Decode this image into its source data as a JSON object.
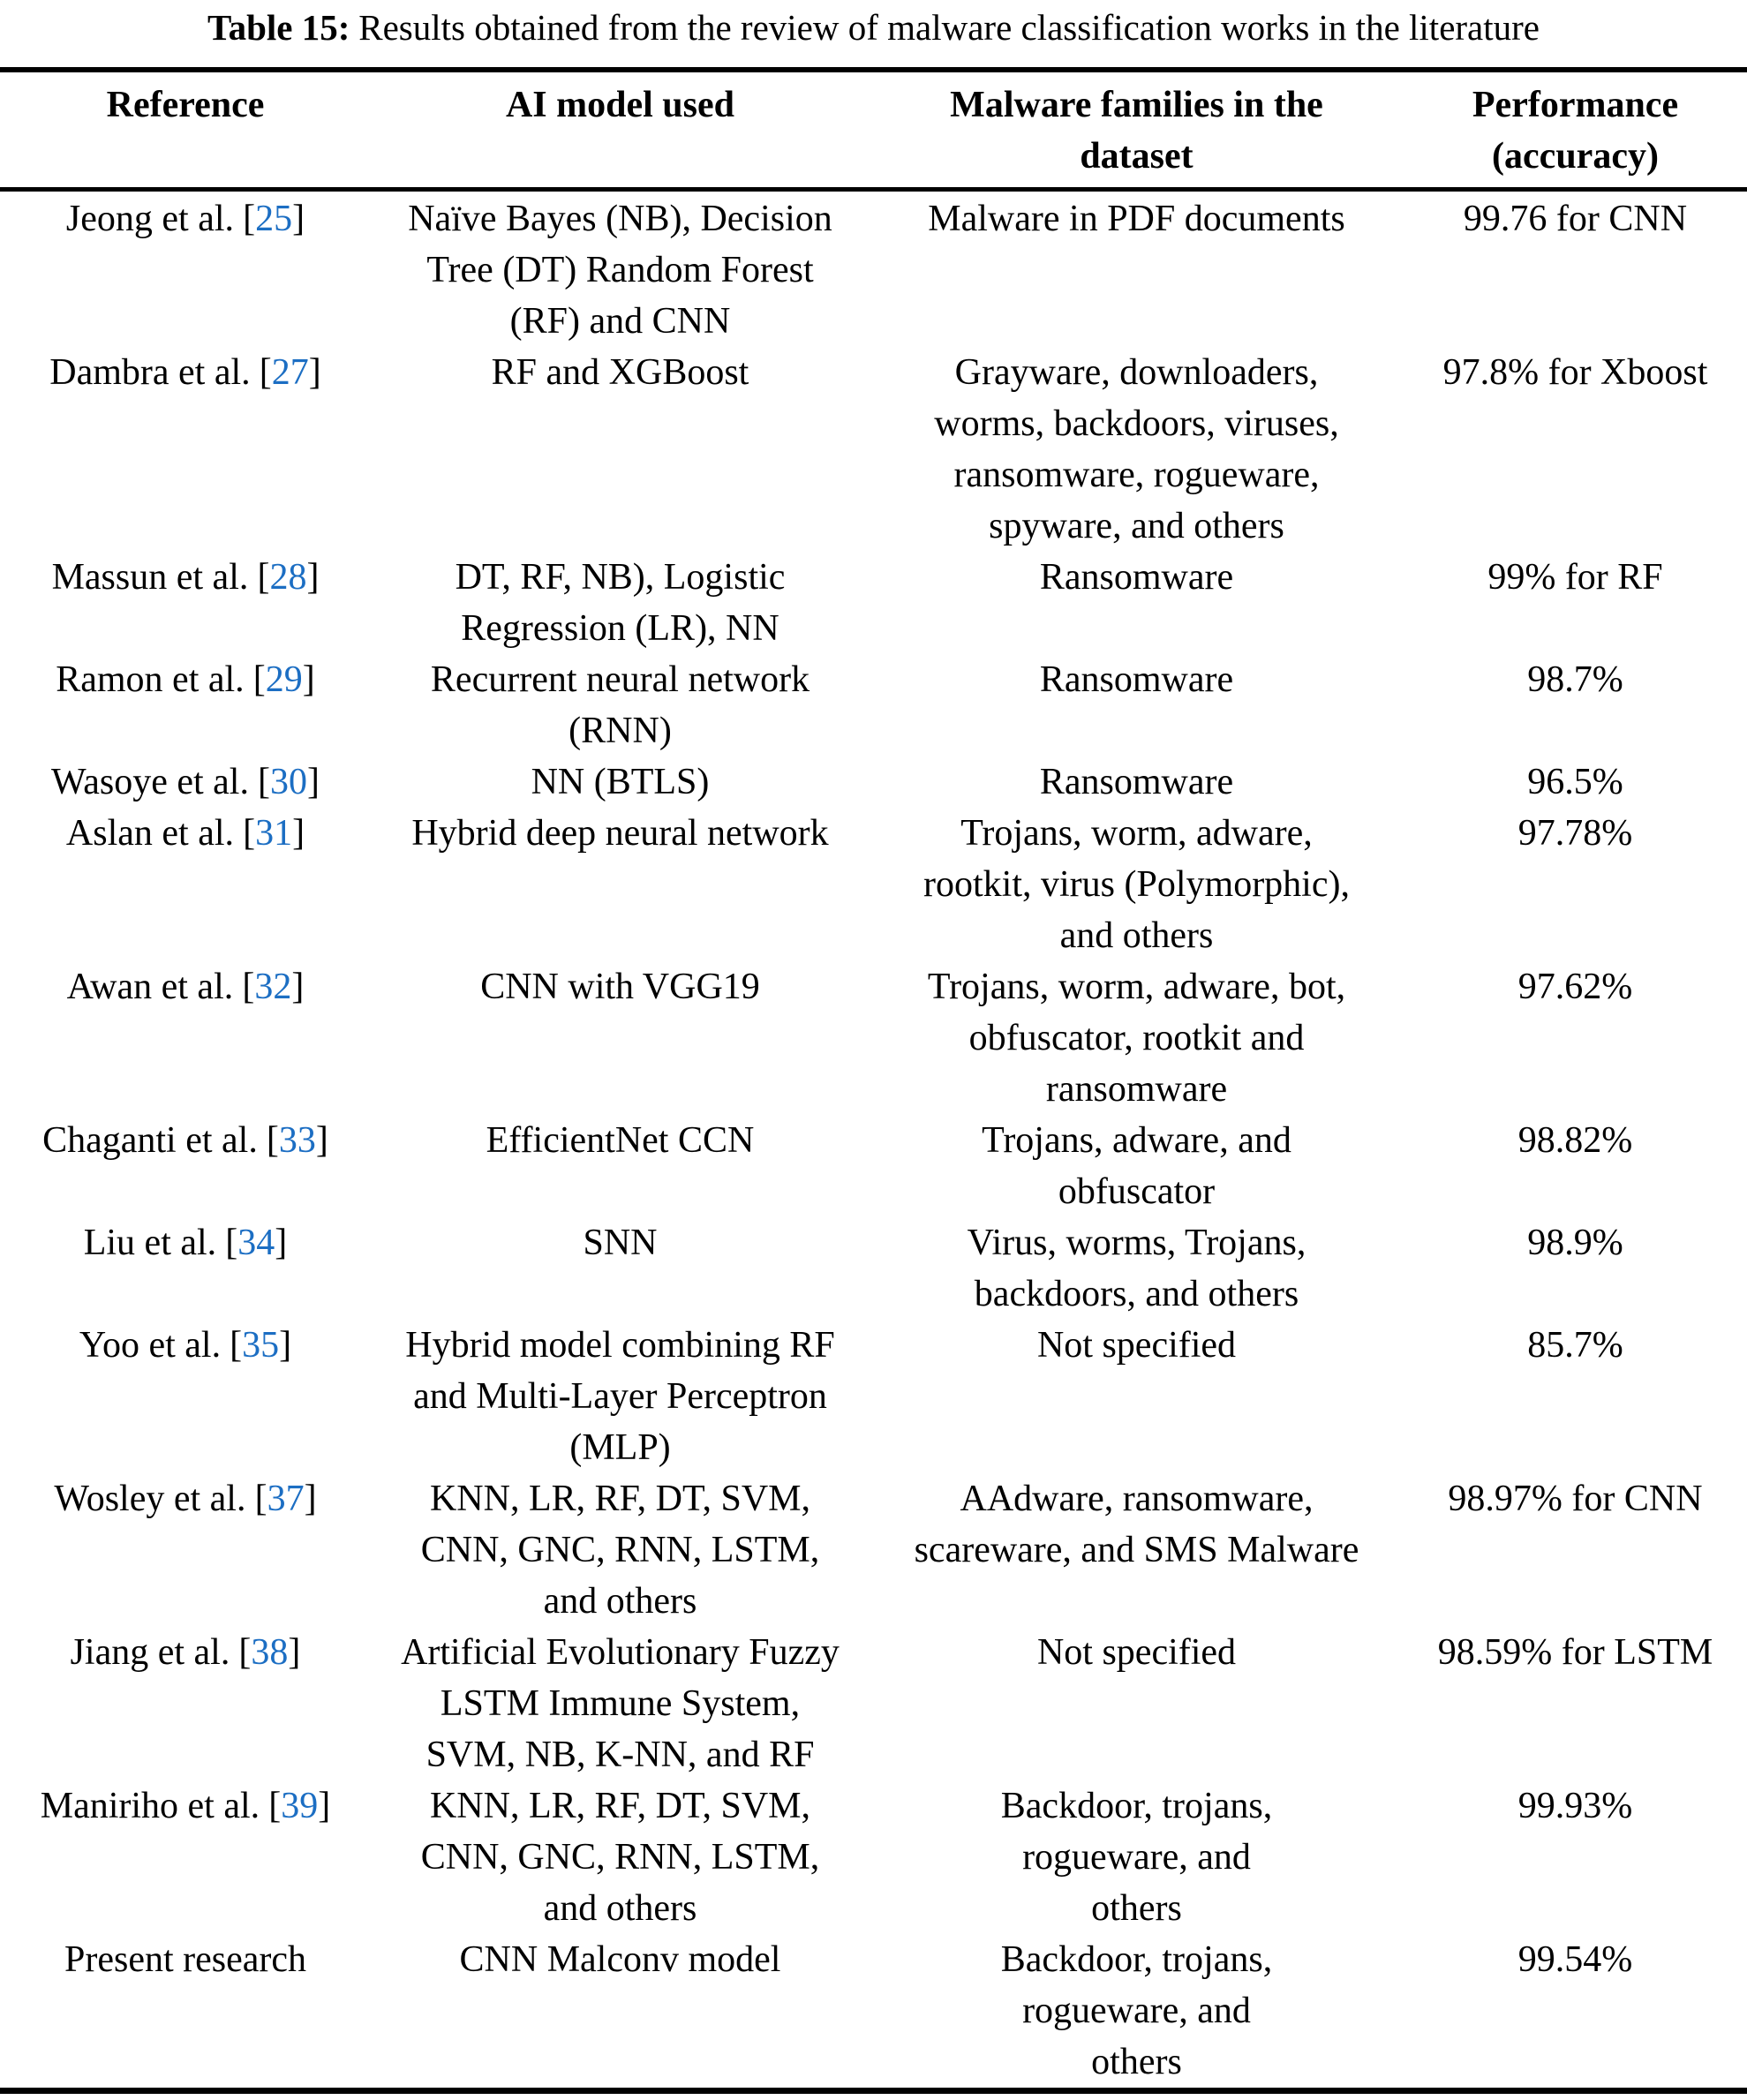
{
  "title": {
    "label": "Table 15:",
    "text": "Results obtained from the review of malware classification works in the literature"
  },
  "columns": [
    "Reference",
    "AI model used",
    "Malware families in the\ndataset",
    "Performance\n(accuracy)"
  ],
  "brackets": {
    "open": "[",
    "close": "]"
  },
  "colors": {
    "citation_blue": "#1c6ec3",
    "text": "#000000",
    "rule": "#000000",
    "background": "#ffffff"
  },
  "rows": [
    {
      "ref": "Jeong et al.",
      "cite": "25",
      "model": "Naïve Bayes (NB), Decision\nTree (DT) Random Forest\n(RF) and CNN",
      "families": "Malware in PDF documents",
      "performance": "99.76 for CNN"
    },
    {
      "ref": "Dambra et al.",
      "cite": "27",
      "model": "RF and XGBoost",
      "families": "Grayware, downloaders,\nworms, backdoors, viruses,\nransomware, rogueware,\nspyware, and others",
      "performance": "97.8% for Xboost"
    },
    {
      "ref": "Massun et al.",
      "cite": "28",
      "model": "DT, RF, NB), Logistic\nRegression (LR), NN",
      "families": "Ransomware",
      "performance": "99% for RF"
    },
    {
      "ref": "Ramon et al.",
      "cite": "29",
      "model": "Recurrent neural network\n(RNN)",
      "families": "Ransomware",
      "performance": "98.7%"
    },
    {
      "ref": "Wasoye et al.",
      "cite": "30",
      "model": "NN (BTLS)",
      "families": "Ransomware",
      "performance": "96.5%"
    },
    {
      "ref": "Aslan et al.",
      "cite": "31",
      "model": "Hybrid deep neural network",
      "families": "Trojans, worm, adware,\nrootkit, virus (Polymorphic),\nand others",
      "performance": "97.78%"
    },
    {
      "ref": "Awan et al.",
      "cite": "32",
      "model": "CNN with VGG19",
      "families": "Trojans, worm, adware, bot,\nobfuscator, rootkit and\nransomware",
      "performance": "97.62%"
    },
    {
      "ref": "Chaganti et al.",
      "cite": "33",
      "model": "EfficientNet CCN",
      "families": "Trojans, adware, and\nobfuscator",
      "performance": "98.82%"
    },
    {
      "ref": "Liu et al.",
      "cite": "34",
      "model": "SNN",
      "families": "Virus, worms, Trojans,\nbackdoors, and others",
      "performance": "98.9%"
    },
    {
      "ref": "Yoo et al.",
      "cite": "35",
      "model": "Hybrid model combining RF\nand Multi-Layer Perceptron\n(MLP)",
      "families": "Not specified",
      "performance": "85.7%"
    },
    {
      "ref": "Wosley et al.",
      "cite": "37",
      "model": "KNN, LR, RF, DT, SVM,\nCNN, GNC, RNN, LSTM,\nand others",
      "families": "AAdware, ransomware,\nscareware, and SMS Malware",
      "performance": "98.97% for CNN"
    },
    {
      "ref": "Jiang et al.",
      "cite": "38",
      "model": "Artificial Evolutionary Fuzzy\nLSTM Immune System,\nSVM, NB, K-NN, and RF",
      "families": "Not specified",
      "performance": "98.59% for LSTM"
    },
    {
      "ref": "Maniriho et al.",
      "cite": "39",
      "model": "KNN, LR, RF, DT, SVM,\nCNN, GNC, RNN, LSTM,\nand others",
      "families": "Backdoor, trojans,\nrogueware, and\nothers",
      "performance": "99.93%"
    },
    {
      "ref": "Present research",
      "cite": "",
      "model": "CNN Malconv model",
      "families": "Backdoor, trojans,\nrogueware, and\nothers",
      "performance": "99.54%"
    }
  ]
}
